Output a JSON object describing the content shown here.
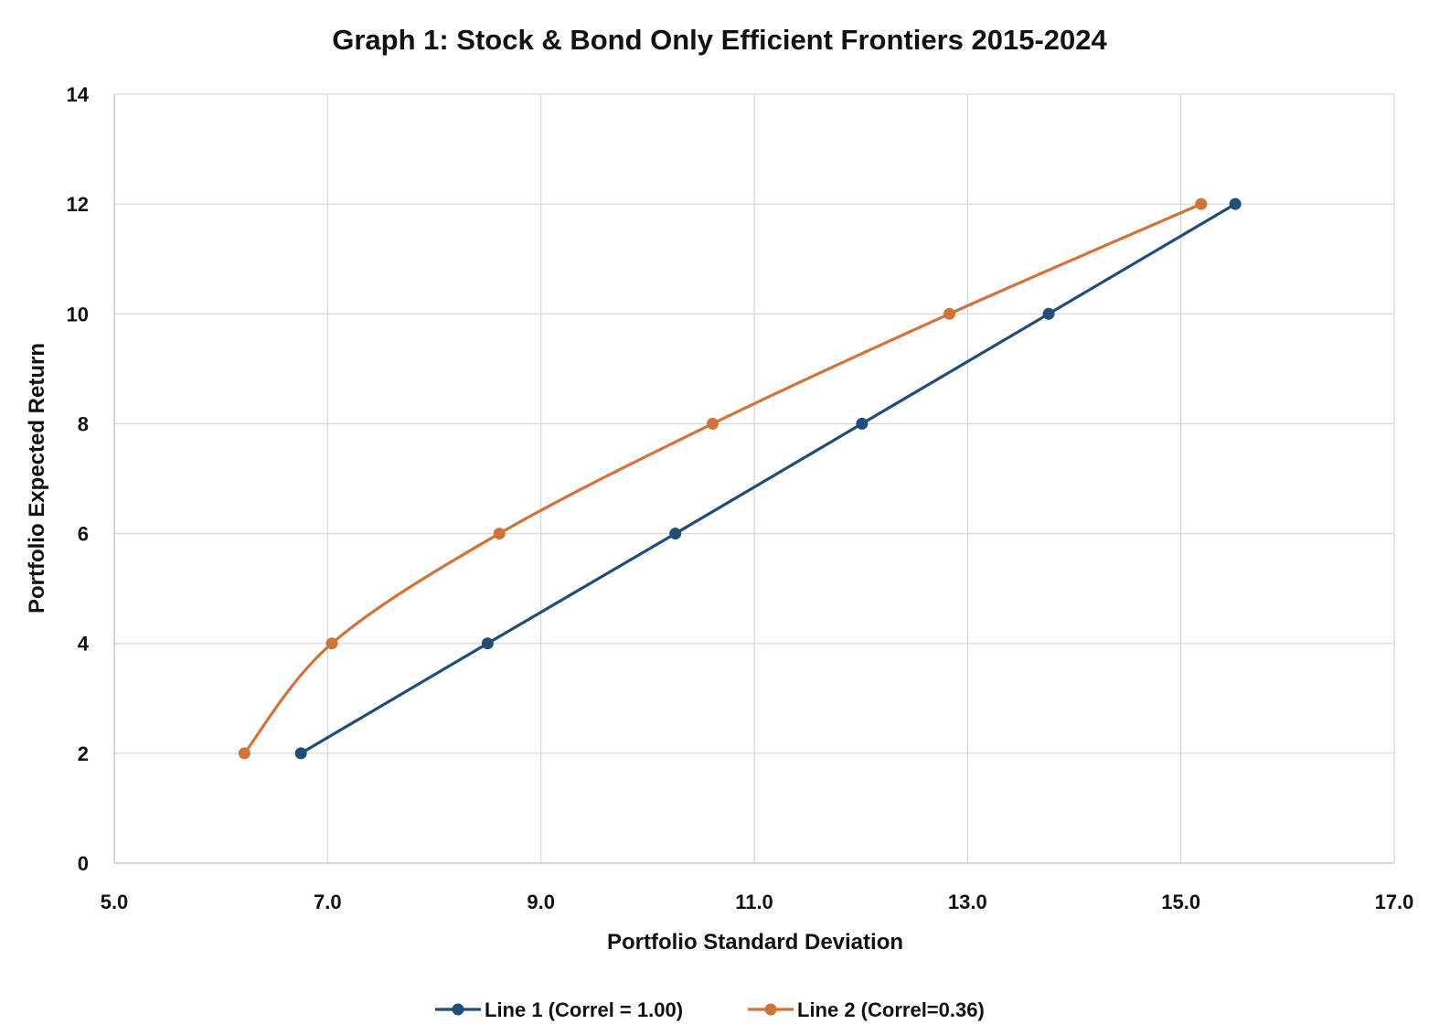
{
  "chart_data": {
    "type": "scatter",
    "title": "Graph 1: Stock & Bond Only Efficient Frontiers  2015-2024",
    "xlabel": "Portfolio Standard Deviation",
    "ylabel": "Portfolio Expected Return",
    "xlim": [
      5.0,
      17.0
    ],
    "ylim": [
      0,
      14
    ],
    "x_ticks": [
      "5.0",
      "7.0",
      "9.0",
      "11.0",
      "13.0",
      "15.0",
      "17.0"
    ],
    "y_ticks": [
      "0",
      "2",
      "4",
      "6",
      "8",
      "10",
      "12",
      "14"
    ],
    "grid": true,
    "legend_position": "bottom",
    "series": [
      {
        "name": "Line 1 (Correl = 1.00)",
        "color": "#1f4e79",
        "smooth": false,
        "points": [
          {
            "x": 6.75,
            "y": 2
          },
          {
            "x": 8.5,
            "y": 4
          },
          {
            "x": 10.26,
            "y": 6
          },
          {
            "x": 12.01,
            "y": 8
          },
          {
            "x": 13.76,
            "y": 10
          },
          {
            "x": 15.51,
            "y": 12
          }
        ]
      },
      {
        "name": "Line 2 (Correl=0.36)",
        "color": "#d2733a",
        "smooth": true,
        "points": [
          {
            "x": 6.22,
            "y": 2
          },
          {
            "x": 7.04,
            "y": 4
          },
          {
            "x": 8.61,
            "y": 6
          },
          {
            "x": 10.61,
            "y": 8
          },
          {
            "x": 12.83,
            "y": 10
          },
          {
            "x": 15.19,
            "y": 12
          }
        ]
      }
    ]
  }
}
